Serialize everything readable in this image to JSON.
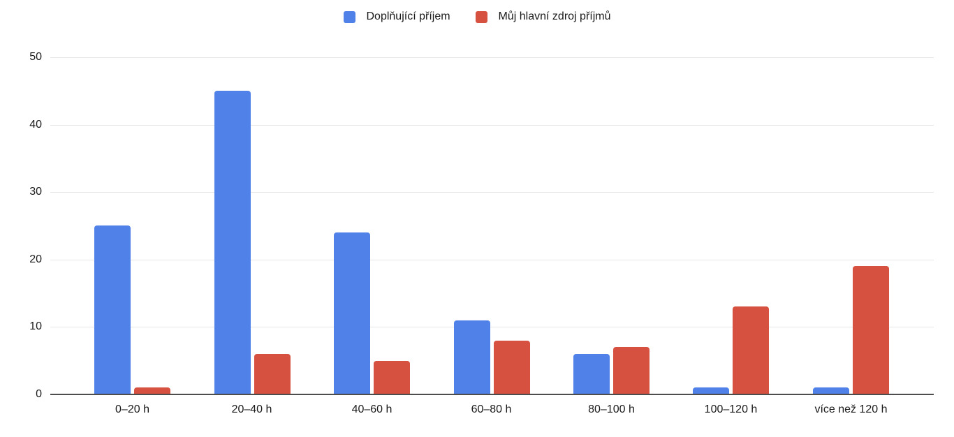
{
  "chart_data": {
    "type": "bar",
    "title": "",
    "categories": [
      "0–20 h",
      "20–40 h",
      "40–60 h",
      "60–80 h",
      "80–100 h",
      "100–120 h",
      "více než 120 h"
    ],
    "series": [
      {
        "name": "Doplňující příjem",
        "color": "#4f81e8",
        "values": [
          25,
          45,
          24,
          11,
          6,
          1,
          1
        ]
      },
      {
        "name": "Můj hlavní zdroj příjmů",
        "color": "#d6513f",
        "values": [
          1,
          6,
          5,
          8,
          7,
          13,
          19
        ]
      }
    ],
    "xlabel": "",
    "ylabel": "",
    "ylim": [
      0,
      50
    ],
    "yticks": [
      0,
      10,
      20,
      30,
      40,
      50
    ],
    "grid": true,
    "legend_position": "top",
    "colors": {
      "gridline": "#e6e6e6",
      "axis_line": "#4d4d4d",
      "label_text": "#1a1a1a",
      "background": "#ffffff"
    }
  }
}
